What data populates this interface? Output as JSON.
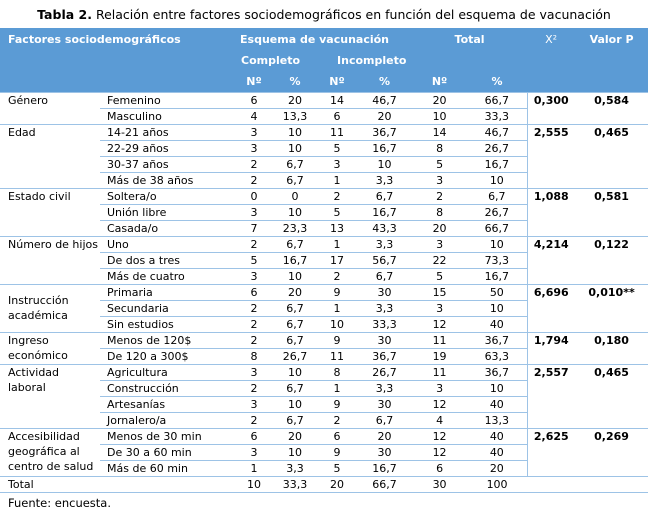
{
  "title": {
    "label": "Tabla 2.",
    "text": " Relación entre factores sociodemográficos en función del esquema de vacunación"
  },
  "header": {
    "factors": "Factores sociodemográficos",
    "scheme": "Esquema de vacunación",
    "total": "Total",
    "chi": "X²",
    "p_value": "Valor P",
    "complete": "Completo",
    "incomplete": "Incompleto",
    "n": "Nº",
    "pct": "%"
  },
  "groups": [
    {
      "factor": "Género",
      "chi": "0,300",
      "p": "0,584",
      "rows": [
        {
          "label": "Femenino",
          "n1": "6",
          "p1": "20",
          "n2": "14",
          "p2": "46,7",
          "nt": "20",
          "pt": "66,7"
        },
        {
          "label": "Masculino",
          "n1": "4",
          "p1": "13,3",
          "n2": "6",
          "p2": "20",
          "nt": "10",
          "pt": "33,3"
        }
      ]
    },
    {
      "factor": "Edad",
      "chi": "2,555",
      "p": "0,465",
      "rows": [
        {
          "label": "14-21 años",
          "n1": "3",
          "p1": "10",
          "n2": "11",
          "p2": "36,7",
          "nt": "14",
          "pt": "46,7"
        },
        {
          "label": "22-29 años",
          "n1": "3",
          "p1": "10",
          "n2": "5",
          "p2": "16,7",
          "nt": "8",
          "pt": "26,7"
        },
        {
          "label": "30-37 años",
          "n1": "2",
          "p1": "6,7",
          "n2": "3",
          "p2": "10",
          "nt": "5",
          "pt": "16,7"
        },
        {
          "label": "Más de 38 años",
          "n1": "2",
          "p1": "6,7",
          "n2": "1",
          "p2": "3,3",
          "nt": "3",
          "pt": "10"
        }
      ]
    },
    {
      "factor": "Estado civil",
      "chi": "1,088",
      "p": "0,581",
      "rows": [
        {
          "label": "Soltera/o",
          "n1": "0",
          "p1": "0",
          "n2": "2",
          "p2": "6,7",
          "nt": "2",
          "pt": "6,7"
        },
        {
          "label": "Unión libre",
          "n1": "3",
          "p1": "10",
          "n2": "5",
          "p2": "16,7",
          "nt": "8",
          "pt": "26,7"
        },
        {
          "label": "Casada/o",
          "n1": "7",
          "p1": "23,3",
          "n2": "13",
          "p2": "43,3",
          "nt": "20",
          "pt": "66,7"
        }
      ]
    },
    {
      "factor": "Número de hijos",
      "chi": "4,214",
      "p": "0,122",
      "rows": [
        {
          "label": "Uno",
          "n1": "2",
          "p1": "6,7",
          "n2": "1",
          "p2": "3,3",
          "nt": "3",
          "pt": "10"
        },
        {
          "label": "De dos a tres",
          "n1": "5",
          "p1": "16,7",
          "n2": "17",
          "p2": "56,7",
          "nt": "22",
          "pt": "73,3"
        },
        {
          "label": "Más de cuatro",
          "n1": "3",
          "p1": "10",
          "n2": "2",
          "p2": "6,7",
          "nt": "5",
          "pt": "16,7"
        }
      ]
    },
    {
      "factor": "Instrucción académica",
      "chi": "6,696",
      "p": "0,010**",
      "rows": [
        {
          "label": "Primaria",
          "n1": "6",
          "p1": "20",
          "n2": "9",
          "p2": "30",
          "nt": "15",
          "pt": "50"
        },
        {
          "label": "Secundaria",
          "n1": "2",
          "p1": "6,7",
          "n2": "1",
          "p2": "3,3",
          "nt": "3",
          "pt": "10"
        },
        {
          "label": "Sin estudios",
          "n1": "2",
          "p1": "6,7",
          "n2": "10",
          "p2": "33,3",
          "nt": "12",
          "pt": "40"
        }
      ]
    },
    {
      "factor": "Ingreso económico",
      "chi": "1,794",
      "p": "0,180",
      "rows": [
        {
          "label": "Menos de 120$",
          "n1": "2",
          "p1": "6,7",
          "n2": "9",
          "p2": "30",
          "nt": "11",
          "pt": "36,7"
        },
        {
          "label": "De 120 a 300$",
          "n1": "8",
          "p1": "26,7",
          "n2": "11",
          "p2": "36,7",
          "nt": "19",
          "pt": "63,3"
        }
      ]
    },
    {
      "factor": "Actividad laboral",
      "chi": "2,557",
      "p": "0,465",
      "rows": [
        {
          "label": "Agricultura",
          "n1": "3",
          "p1": "10",
          "n2": "8",
          "p2": "26,7",
          "nt": "11",
          "pt": "36,7"
        },
        {
          "label": "Construcción",
          "n1": "2",
          "p1": "6,7",
          "n2": "1",
          "p2": "3,3",
          "nt": "3",
          "pt": "10"
        },
        {
          "label": "Artesanías",
          "n1": "3",
          "p1": "10",
          "n2": "9",
          "p2": "30",
          "nt": "12",
          "pt": "40"
        },
        {
          "label": "Jornalero/a",
          "n1": "2",
          "p1": "6,7",
          "n2": "2",
          "p2": "6,7",
          "nt": "4",
          "pt": "13,3"
        }
      ]
    },
    {
      "factor": "Accesibilidad geográfica al centro de salud",
      "chi": "2,625",
      "p": "0,269",
      "rows": [
        {
          "label": "Menos de 30 min",
          "n1": "6",
          "p1": "20",
          "n2": "6",
          "p2": "20",
          "nt": "12",
          "pt": "40"
        },
        {
          "label": "De 30 a 60 min",
          "n1": "3",
          "p1": "10",
          "n2": "9",
          "p2": "30",
          "nt": "12",
          "pt": "40"
        },
        {
          "label": "Más de 60 min",
          "n1": "1",
          "p1": "3,3",
          "n2": "5",
          "p2": "16,7",
          "nt": "6",
          "pt": "20"
        }
      ]
    }
  ],
  "total_row": {
    "label": "Total",
    "n1": "10",
    "p1": "33,3",
    "n2": "20",
    "p2": "66,7",
    "nt": "30",
    "pt": "100"
  },
  "source": "Fuente: encuesta.",
  "colors": {
    "header_bg": "#5B9BD5",
    "header_text": "#FFFFFF",
    "border": "#9DC3E6",
    "text": "#000000"
  }
}
